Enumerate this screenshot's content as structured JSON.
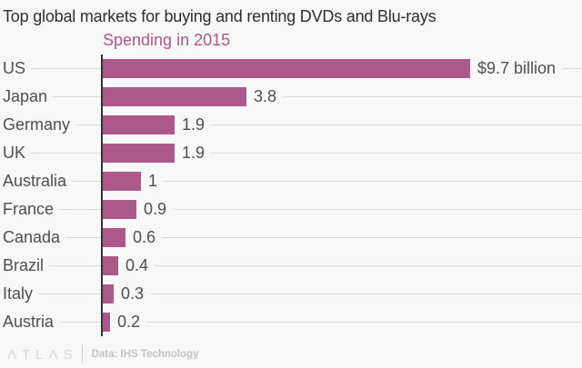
{
  "chart_data": {
    "type": "bar",
    "orientation": "horizontal",
    "title": "Top global markets for buying and renting DVDs and Blu-rays",
    "legend_label": "Spending in 2015",
    "unit": "$ billion",
    "categories": [
      "US",
      "Japan",
      "Germany",
      "UK",
      "Australia",
      "France",
      "Canada",
      "Brazil",
      "Italy",
      "Austria"
    ],
    "values": [
      9.7,
      3.8,
      1.9,
      1.9,
      1,
      0.9,
      0.6,
      0.4,
      0.3,
      0.2
    ],
    "value_labels": [
      "$9.7 billion",
      "3.8",
      "1.9",
      "1.9",
      "1",
      "0.9",
      "0.6",
      "0.4",
      "0.3",
      "0.2"
    ],
    "series_color": "#ac588a",
    "xlim": [
      0,
      12.7
    ],
    "grid": true,
    "legend_position": "top-left"
  },
  "footer": {
    "logo": "ΛTLΛS",
    "credit": "Data: IHS Technology"
  },
  "colors": {
    "background": "#f8f8f8",
    "bar": "#ac588a",
    "title_text": "#2e2e2e",
    "label_text": "#4f4f4f",
    "axis": "#333333",
    "gridline": "#dadada",
    "footer_text": "#c4c4c4"
  }
}
